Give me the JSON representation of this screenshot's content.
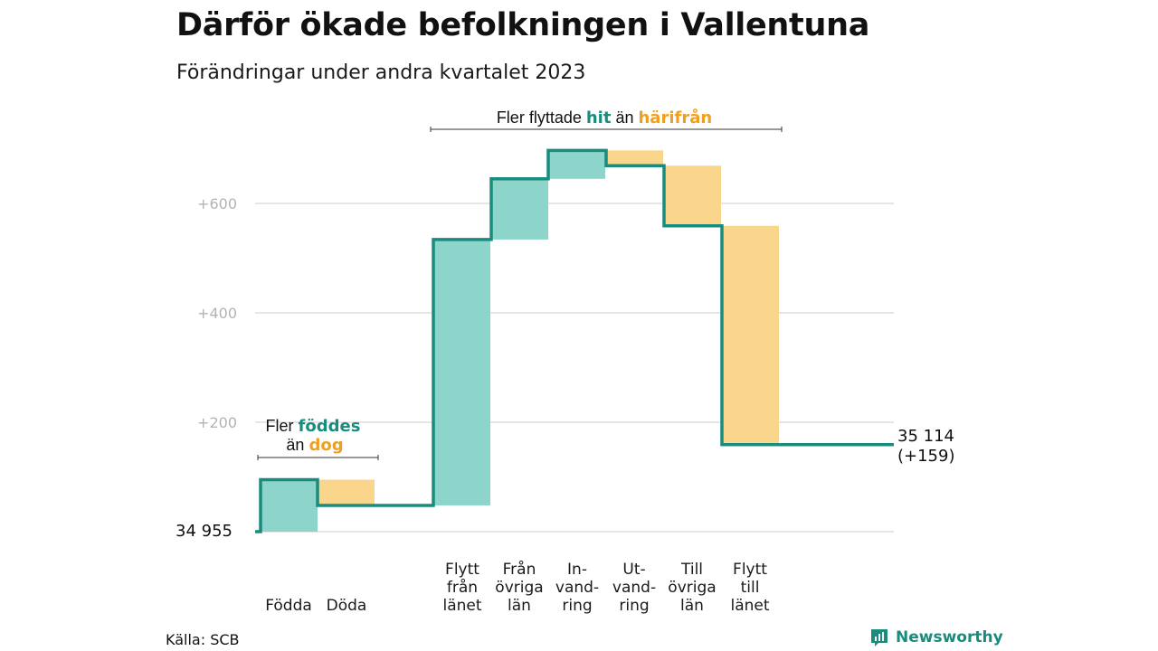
{
  "header": {
    "title": "Därför ökade befolkningen i Vallentuna",
    "subtitle": "Förändringar under andra kvartalet 2023"
  },
  "annotations": {
    "births": {
      "prefix": "Fler ",
      "positive": "föddes",
      "mid": "än ",
      "negative": "dog"
    },
    "moves": {
      "prefix": "Fler flyttade ",
      "positive": "hit",
      "mid": " än ",
      "negative": "härifrån"
    }
  },
  "footer": {
    "source": "Källa: SCB",
    "brand": "Newsworthy"
  },
  "colors": {
    "positive_fill": "#8dd5cb",
    "negative_fill": "#fad68c",
    "line": "#1a8c7e",
    "positive_text": "#1a8c7e",
    "negative_text": "#f0a020"
  },
  "chart_data": {
    "type": "waterfall",
    "start_value": 34955,
    "start_label": "34  955",
    "end_value": 35114,
    "end_label": "35 114",
    "end_change_label": "(+159)",
    "yticks": [
      200,
      400,
      600
    ],
    "ytick_labels": [
      "+200",
      "+400",
      "+600"
    ],
    "ylim": [
      0,
      700
    ],
    "steps": [
      {
        "label": [
          "Födda"
        ],
        "value": 95,
        "direction": "in"
      },
      {
        "label": [
          "Döda"
        ],
        "value": -47,
        "direction": "out"
      },
      {
        "label": [
          "Flytt",
          "från",
          "länet"
        ],
        "value": 486,
        "direction": "in"
      },
      {
        "label": [
          "Från",
          "övriga",
          "län"
        ],
        "value": 111,
        "direction": "in"
      },
      {
        "label": [
          "In-",
          "vand-",
          "ring"
        ],
        "value": 52,
        "direction": "in"
      },
      {
        "label": [
          "Ut-",
          "vand-",
          "ring"
        ],
        "value": -28,
        "direction": "out"
      },
      {
        "label": [
          "Till",
          "övriga",
          "län"
        ],
        "value": -110,
        "direction": "out"
      },
      {
        "label": [
          "Flytt",
          "till",
          "länet"
        ],
        "value": -400,
        "direction": "out"
      }
    ]
  }
}
